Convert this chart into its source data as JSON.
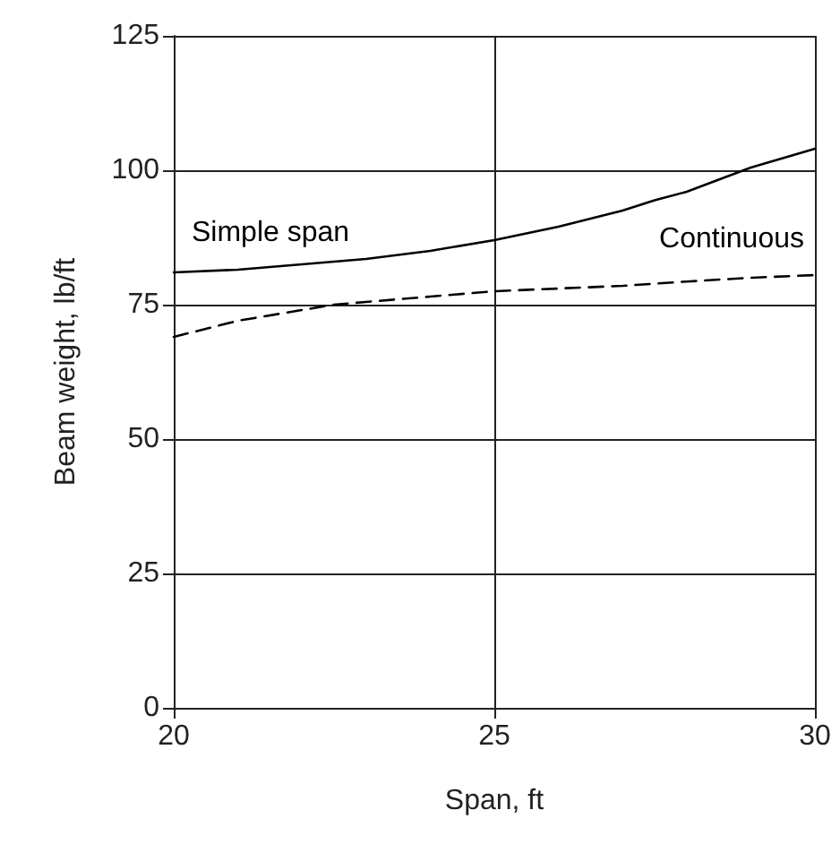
{
  "chart_data": {
    "type": "line",
    "xlabel": "Span, ft",
    "ylabel": "Beam weight, lb/ft",
    "xlim": [
      20,
      30
    ],
    "xticks": [
      20,
      25,
      30
    ],
    "ylim": [
      0,
      125
    ],
    "yticks": [
      0,
      25,
      50,
      75,
      100,
      125
    ],
    "grid": true,
    "legend": false,
    "marker": "none",
    "series": [
      {
        "name": "Simple span",
        "color": "#000000",
        "line_style": "solid",
        "x": [
          20,
          21,
          22,
          22.5,
          23,
          24,
          25,
          26,
          27,
          27.5,
          28,
          29,
          30
        ],
        "values": [
          81,
          81.5,
          82.5,
          83,
          83.5,
          85,
          87,
          89.5,
          92.5,
          94.4,
          96,
          100.5,
          104
        ]
      },
      {
        "name": "Continuous",
        "color": "#000000",
        "line_style": "dashed",
        "x": [
          20,
          21,
          22,
          22.5,
          23,
          24,
          25,
          26,
          27,
          28,
          29,
          30
        ],
        "values": [
          69,
          72,
          74,
          75,
          75.5,
          76.5,
          77.5,
          78,
          78.5,
          79.3,
          80,
          80.5
        ]
      }
    ]
  }
}
